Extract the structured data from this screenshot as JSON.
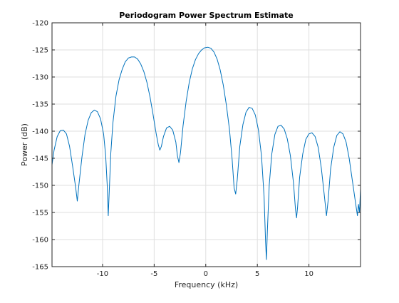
{
  "chart_data": {
    "type": "line",
    "title": "Periodogram Power Spectrum Estimate",
    "xlabel": "Frequency (kHz)",
    "ylabel": "Power (dB)",
    "xlim": [
      -14.9,
      15.0
    ],
    "ylim": [
      -165,
      -120
    ],
    "xticks": [
      -10,
      -5,
      0,
      5,
      10
    ],
    "yticks": [
      -120,
      -125,
      -130,
      -135,
      -140,
      -145,
      -150,
      -155,
      -160,
      -165
    ],
    "xtick_labels": [
      "-10",
      "-5",
      "0",
      "5",
      "10"
    ],
    "ytick_labels": [
      "-120",
      "-125",
      "-130",
      "-135",
      "-140",
      "-145",
      "-150",
      "-155",
      "-160",
      "-165"
    ],
    "grid": true,
    "line_color": "#0072bd",
    "series": [
      {
        "points": [
          [
            -14.9,
            -146.2
          ],
          [
            -14.7,
            -143.5
          ],
          [
            -14.4,
            -141.0
          ],
          [
            -14.1,
            -139.9
          ],
          [
            -13.8,
            -139.8
          ],
          [
            -13.5,
            -140.5
          ],
          [
            -13.2,
            -142.8
          ],
          [
            -12.9,
            -146.5
          ],
          [
            -12.6,
            -150.5
          ],
          [
            -12.45,
            -152.9
          ],
          [
            -12.3,
            -150.0
          ],
          [
            -12.0,
            -144.8
          ],
          [
            -11.7,
            -140.6
          ],
          [
            -11.4,
            -138.0
          ],
          [
            -11.1,
            -136.6
          ],
          [
            -10.8,
            -136.1
          ],
          [
            -10.5,
            -136.4
          ],
          [
            -10.2,
            -137.7
          ],
          [
            -9.9,
            -140.5
          ],
          [
            -9.7,
            -144.5
          ],
          [
            -9.55,
            -150.0
          ],
          [
            -9.45,
            -155.6
          ],
          [
            -9.35,
            -151.0
          ],
          [
            -9.2,
            -144.0
          ],
          [
            -9.0,
            -138.5
          ],
          [
            -8.7,
            -133.5
          ],
          [
            -8.4,
            -130.5
          ],
          [
            -8.1,
            -128.6
          ],
          [
            -7.8,
            -127.2
          ],
          [
            -7.5,
            -126.5
          ],
          [
            -7.2,
            -126.3
          ],
          [
            -6.9,
            -126.3
          ],
          [
            -6.6,
            -126.7
          ],
          [
            -6.3,
            -127.6
          ],
          [
            -6.0,
            -129.0
          ],
          [
            -5.7,
            -131.0
          ],
          [
            -5.4,
            -133.7
          ],
          [
            -5.1,
            -137.0
          ],
          [
            -4.8,
            -140.5
          ],
          [
            -4.6,
            -142.5
          ],
          [
            -4.45,
            -143.5
          ],
          [
            -4.3,
            -142.8
          ],
          [
            -4.1,
            -141.0
          ],
          [
            -3.8,
            -139.4
          ],
          [
            -3.5,
            -139.1
          ],
          [
            -3.2,
            -139.8
          ],
          [
            -2.9,
            -142.0
          ],
          [
            -2.75,
            -144.5
          ],
          [
            -2.6,
            -145.8
          ],
          [
            -2.45,
            -144.0
          ],
          [
            -2.2,
            -139.0
          ],
          [
            -1.9,
            -134.5
          ],
          [
            -1.6,
            -131.0
          ],
          [
            -1.3,
            -128.5
          ],
          [
            -1.0,
            -126.8
          ],
          [
            -0.7,
            -125.7
          ],
          [
            -0.4,
            -125.0
          ],
          [
            -0.1,
            -124.6
          ],
          [
            0.2,
            -124.5
          ],
          [
            0.5,
            -124.7
          ],
          [
            0.8,
            -125.4
          ],
          [
            1.1,
            -126.7
          ],
          [
            1.4,
            -128.7
          ],
          [
            1.7,
            -131.5
          ],
          [
            2.0,
            -135.2
          ],
          [
            2.3,
            -139.7
          ],
          [
            2.55,
            -145.0
          ],
          [
            2.75,
            -150.5
          ],
          [
            2.9,
            -151.6
          ],
          [
            3.05,
            -149.0
          ],
          [
            3.3,
            -142.8
          ],
          [
            3.6,
            -138.8
          ],
          [
            3.9,
            -136.5
          ],
          [
            4.2,
            -135.6
          ],
          [
            4.5,
            -135.8
          ],
          [
            4.8,
            -137.0
          ],
          [
            5.1,
            -139.7
          ],
          [
            5.4,
            -144.5
          ],
          [
            5.65,
            -152.0
          ],
          [
            5.8,
            -160.5
          ],
          [
            5.88,
            -163.7
          ],
          [
            5.98,
            -158.0
          ],
          [
            6.15,
            -150.0
          ],
          [
            6.4,
            -144.2
          ],
          [
            6.7,
            -140.6
          ],
          [
            7.0,
            -139.1
          ],
          [
            7.3,
            -138.9
          ],
          [
            7.6,
            -139.6
          ],
          [
            7.9,
            -141.4
          ],
          [
            8.2,
            -144.5
          ],
          [
            8.5,
            -149.5
          ],
          [
            8.7,
            -154.5
          ],
          [
            8.8,
            -156.0
          ],
          [
            8.9,
            -154.0
          ],
          [
            9.1,
            -148.5
          ],
          [
            9.4,
            -144.2
          ],
          [
            9.7,
            -141.5
          ],
          [
            10.0,
            -140.5
          ],
          [
            10.3,
            -140.3
          ],
          [
            10.6,
            -141.0
          ],
          [
            10.9,
            -143.0
          ],
          [
            11.2,
            -146.8
          ],
          [
            11.5,
            -152.0
          ],
          [
            11.7,
            -155.6
          ],
          [
            11.85,
            -153.0
          ],
          [
            12.1,
            -147.0
          ],
          [
            12.4,
            -143.0
          ],
          [
            12.7,
            -140.8
          ],
          [
            13.0,
            -140.1
          ],
          [
            13.3,
            -140.5
          ],
          [
            13.6,
            -142.0
          ],
          [
            13.9,
            -145.0
          ],
          [
            14.2,
            -149.0
          ],
          [
            14.5,
            -153.0
          ],
          [
            14.7,
            -155.6
          ],
          [
            14.8,
            -153.5
          ],
          [
            14.9,
            -155.0
          ],
          [
            15.0,
            -150.6
          ]
        ]
      }
    ]
  }
}
